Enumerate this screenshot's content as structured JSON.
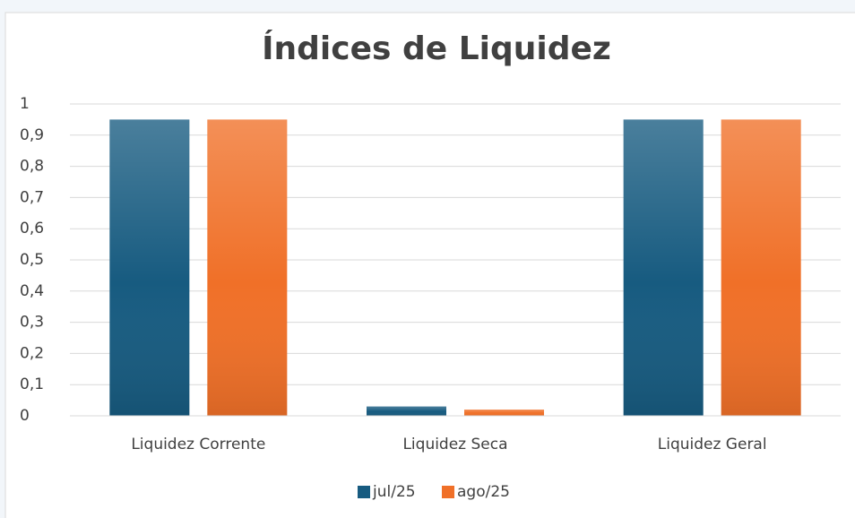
{
  "chart_data": {
    "type": "bar",
    "title": "Índices de Liquidez",
    "categories": [
      "Liquidez Corrente",
      "Liquidez Seca",
      "Liquidez Geral"
    ],
    "series": [
      {
        "name": "jul/25",
        "color": "#175b80",
        "values": [
          0.95,
          0.03,
          0.95
        ]
      },
      {
        "name": "ago/25",
        "color": "#f07028",
        "values": [
          0.95,
          0.02,
          0.95
        ]
      }
    ],
    "ylim": [
      0,
      1
    ],
    "yticks": [
      0,
      {
        "value": 0.1,
        "label": "0,1"
      },
      {
        "value": 0.2,
        "label": "0,2"
      },
      {
        "value": 0.3,
        "label": "0,3"
      },
      {
        "value": 0.4,
        "label": "0,4"
      },
      {
        "value": 0.5,
        "label": "0,5"
      },
      {
        "value": 0.6,
        "label": "0,6"
      },
      {
        "value": 0.7,
        "label": "0,7"
      },
      {
        "value": 0.8,
        "label": "0,8"
      },
      {
        "value": 0.9,
        "label": "0,9"
      },
      1
    ],
    "grid": true,
    "legend": "bottom"
  }
}
